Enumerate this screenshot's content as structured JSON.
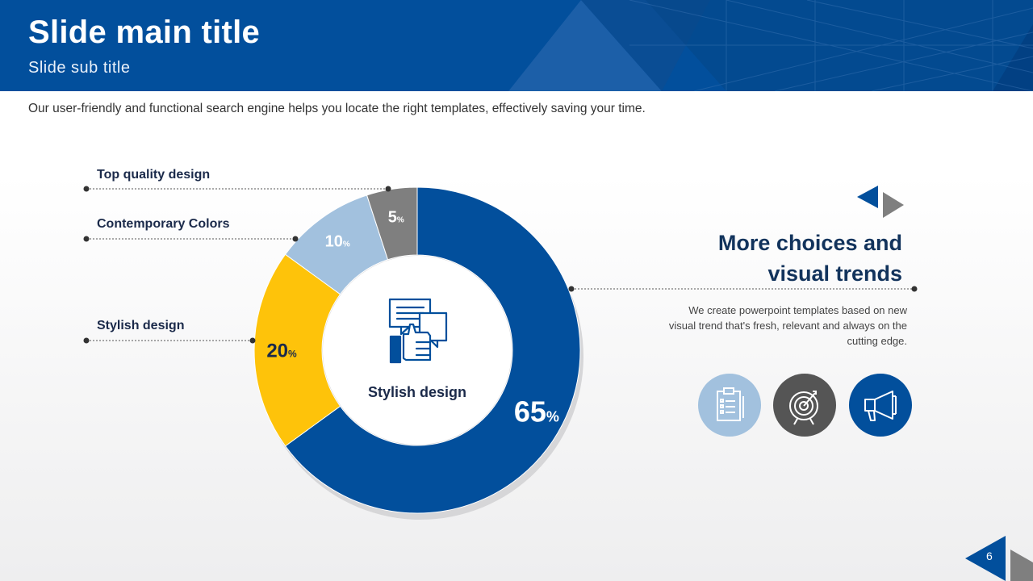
{
  "slide": {
    "title": "Slide main title",
    "subtitle": "Slide sub title",
    "description": "Our user-friendly and functional search engine helps you locate the right templates, effectively saving your time.",
    "page_number": "6"
  },
  "right_panel": {
    "heading_line1": "More choices and",
    "heading_line2": "visual trends",
    "body_line1": "We create powerpoint templates based on new",
    "body_line2": "visual trend that's fresh, relevant and always on the",
    "body_line3": "cutting edge.",
    "icons": [
      {
        "name": "clipboard-icon",
        "color": "#a2c1de"
      },
      {
        "name": "target-icon",
        "color": "#555555"
      },
      {
        "name": "megaphone-icon",
        "color": "#024f9c"
      }
    ]
  },
  "center_label": "Stylish design",
  "chart_data": {
    "type": "pie",
    "variant": "donut",
    "center_text": "Stylish design",
    "slices": [
      {
        "label": "",
        "value": 65,
        "color": "#024f9c",
        "label_color": "#ffffff"
      },
      {
        "label": "Stylish design",
        "value": 20,
        "color": "#fec30a",
        "label_color": "#1b2a4a"
      },
      {
        "label": "Contemporary Colors",
        "value": 10,
        "color": "#a2c1de",
        "label_color": "#ffffff"
      },
      {
        "label": "Top quality design",
        "value": 5,
        "color": "#7f7f7f",
        "label_color": "#ffffff"
      }
    ],
    "value_suffix": "%"
  }
}
